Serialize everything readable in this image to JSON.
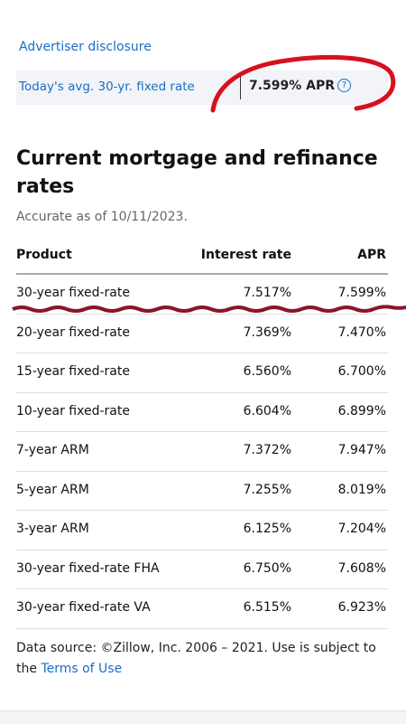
{
  "header": {
    "disclosure": "Advertiser disclosure",
    "banner_label": "Today's avg. 30-yr. fixed rate",
    "banner_value": "7.599% APR"
  },
  "title": "Current mortgage and refinance rates",
  "subtitle": "Accurate as of 10/11/2023.",
  "table": {
    "columns": [
      "Product",
      "Interest rate",
      "APR"
    ],
    "rows": [
      [
        "30-year fixed-rate",
        "7.517%",
        "7.599%"
      ],
      [
        "20-year fixed-rate",
        "7.369%",
        "7.470%"
      ],
      [
        "15-year fixed-rate",
        "6.560%",
        "6.700%"
      ],
      [
        "10-year fixed-rate",
        "6.604%",
        "6.899%"
      ],
      [
        "7-year ARM",
        "7.372%",
        "7.947%"
      ],
      [
        "5-year ARM",
        "7.255%",
        "8.019%"
      ],
      [
        "3-year ARM",
        "6.125%",
        "7.204%"
      ],
      [
        "30-year fixed-rate FHA",
        "6.750%",
        "7.608%"
      ],
      [
        "30-year fixed-rate VA",
        "6.515%",
        "6.923%"
      ]
    ]
  },
  "footer": {
    "text": "Data source: ©Zillow, Inc. 2006 – 2021. Use is subject to the",
    "link": "Terms of Use"
  }
}
